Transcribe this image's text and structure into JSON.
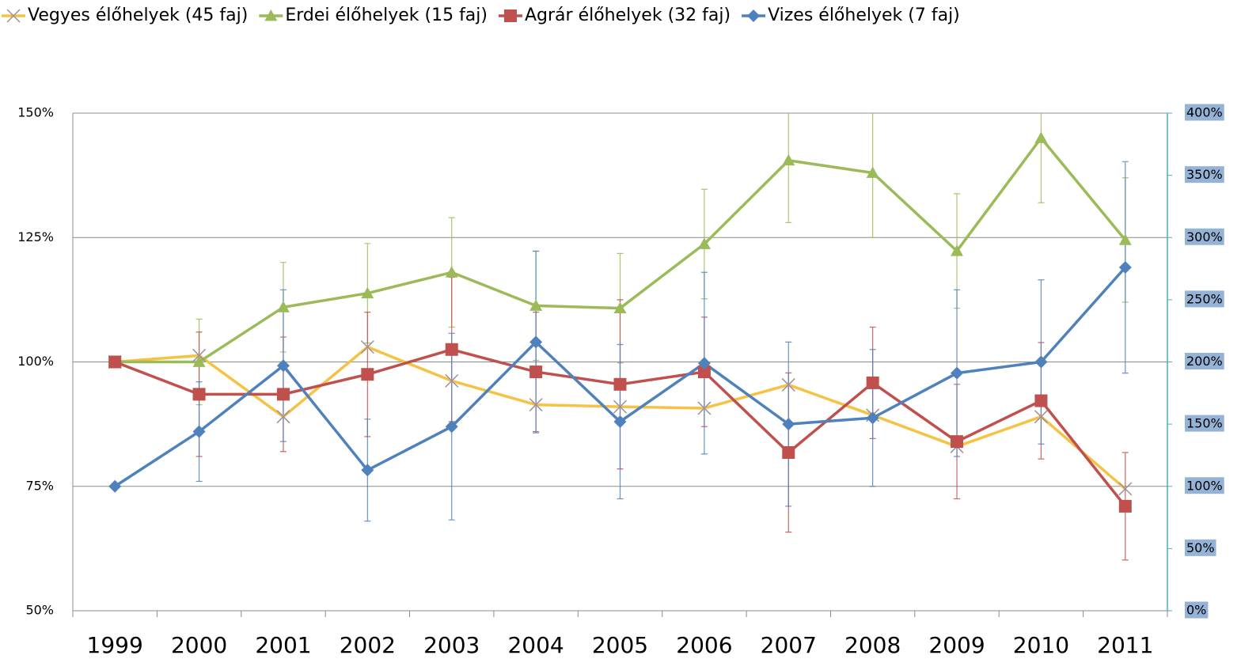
{
  "chart_data": {
    "type": "line",
    "categories": [
      "1999",
      "2000",
      "2001",
      "2002",
      "2003",
      "2004",
      "2005",
      "2006",
      "2007",
      "2008",
      "2009",
      "2010",
      "2011"
    ],
    "ylim": [
      50,
      150
    ],
    "yticks": [
      {
        "value": 50,
        "label": "50%"
      },
      {
        "value": 75,
        "label": "75%"
      },
      {
        "value": 100,
        "label": "100%"
      },
      {
        "value": 125,
        "label": "125%"
      },
      {
        "value": 150,
        "label": "150%"
      }
    ],
    "y2lim": [
      0,
      400
    ],
    "y2ticks": [
      {
        "value": 0,
        "label": "0%"
      },
      {
        "value": 50,
        "label": "50%"
      },
      {
        "value": 100,
        "label": "100%"
      },
      {
        "value": 150,
        "label": "150%"
      },
      {
        "value": 200,
        "label": "200%"
      },
      {
        "value": 250,
        "label": "250%"
      },
      {
        "value": 300,
        "label": "300%"
      },
      {
        "value": 350,
        "label": "350%"
      },
      {
        "value": 400,
        "label": "400%"
      }
    ],
    "grid": true,
    "legend": "top",
    "series": [
      {
        "name": "Vegyes élőhelyek (45 faj)",
        "color": "#f5c243",
        "marker": "x",
        "values": [
          100,
          101.3,
          89,
          103,
          96.2,
          91.4,
          91,
          90.7,
          95.4,
          89.3,
          83,
          89,
          74.5
        ]
      },
      {
        "name": "Erdei élőhelyek (15 faj)",
        "color": "#9bbb59",
        "marker": "triangle",
        "values": [
          100,
          100,
          111,
          113.8,
          118,
          111.3,
          110.8,
          123.7,
          140.5,
          138,
          122.3,
          145,
          124.5
        ],
        "errors": [
          null,
          8.6,
          9,
          10,
          11,
          11,
          11,
          11,
          12.5,
          13,
          11.5,
          13,
          12.5
        ]
      },
      {
        "name": "Agrár élőhelyek (32 faj)",
        "color": "#c0504d",
        "marker": "square",
        "values": [
          100,
          93.5,
          93.5,
          97.5,
          102.5,
          98,
          95.5,
          98,
          81.8,
          95.8,
          84,
          92.2,
          71
        ],
        "errors": [
          null,
          12.5,
          11.5,
          12.5,
          14.5,
          12,
          17,
          11,
          16,
          11.2,
          11.5,
          11.7,
          10.8
        ]
      },
      {
        "name": "Vizes élőhelyek (7 faj)",
        "color": "#4f81bd",
        "marker": "diamond",
        "axis": "y2",
        "values": [
          100,
          144,
          197,
          113,
          148,
          216,
          152,
          199,
          150,
          155,
          191,
          200,
          276
        ],
        "errors": [
          null,
          40,
          61,
          41,
          75,
          73,
          62,
          73,
          66,
          55,
          67,
          66,
          85
        ]
      }
    ]
  }
}
